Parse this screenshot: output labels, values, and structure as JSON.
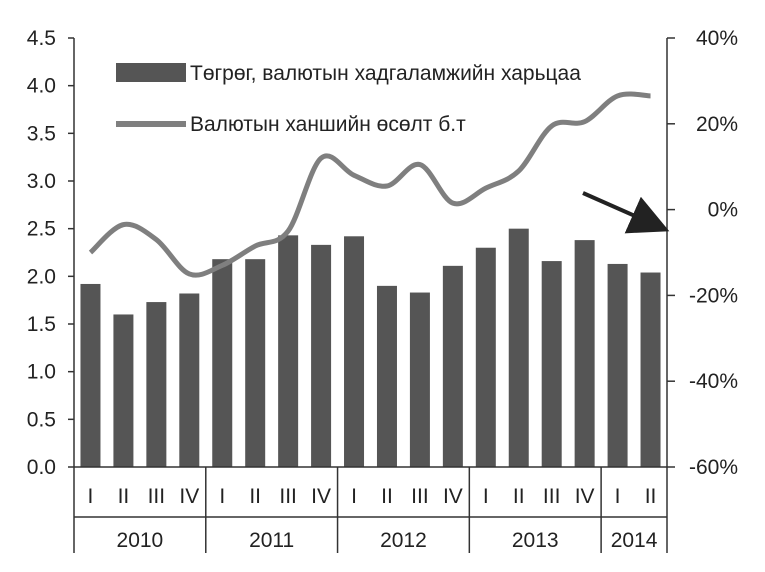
{
  "chart_data": {
    "type": "bar",
    "categories": [
      "I",
      "II",
      "III",
      "IV",
      "I",
      "II",
      "III",
      "IV",
      "I",
      "II",
      "III",
      "IV",
      "I",
      "II",
      "III",
      "IV",
      "I",
      "II"
    ],
    "groups": [
      {
        "label": "2010",
        "count": 4
      },
      {
        "label": "2011",
        "count": 4
      },
      {
        "label": "2012",
        "count": 4
      },
      {
        "label": "2013",
        "count": 4
      },
      {
        "label": "2014",
        "count": 2
      }
    ],
    "series": [
      {
        "name": "Төгрөг, валютын хадгаламжийн харьцаа",
        "type": "bar",
        "axis": "left",
        "color": "#555555",
        "values": [
          1.92,
          1.6,
          1.73,
          1.82,
          2.18,
          2.18,
          2.43,
          2.33,
          2.42,
          1.9,
          1.83,
          2.11,
          2.3,
          2.5,
          2.16,
          2.38,
          2.13,
          2.04
        ]
      },
      {
        "name": "Валютын ханшийн өсөлт б.т",
        "type": "line",
        "axis": "right",
        "color": "#7f7f7f",
        "values": [
          -10,
          -3.5,
          -7,
          -15,
          -13,
          -8.5,
          -5,
          12,
          8,
          5.5,
          10.5,
          1.5,
          5,
          9,
          19.5,
          20.5,
          26.5,
          26.5
        ]
      }
    ],
    "ylim_left": [
      0,
      4.5
    ],
    "yticks_left": [
      "0.0",
      "0.5",
      "1.0",
      "1.5",
      "2.0",
      "2.5",
      "3.0",
      "3.5",
      "4.0",
      "4.5"
    ],
    "ylim_right": [
      -60,
      40
    ],
    "yticks_right": [
      "-60%",
      "-40%",
      "-20%",
      "0%",
      "20%",
      "40%"
    ],
    "grid": false,
    "legend": "top-left",
    "annotation": "arrow pointing to right axis"
  }
}
